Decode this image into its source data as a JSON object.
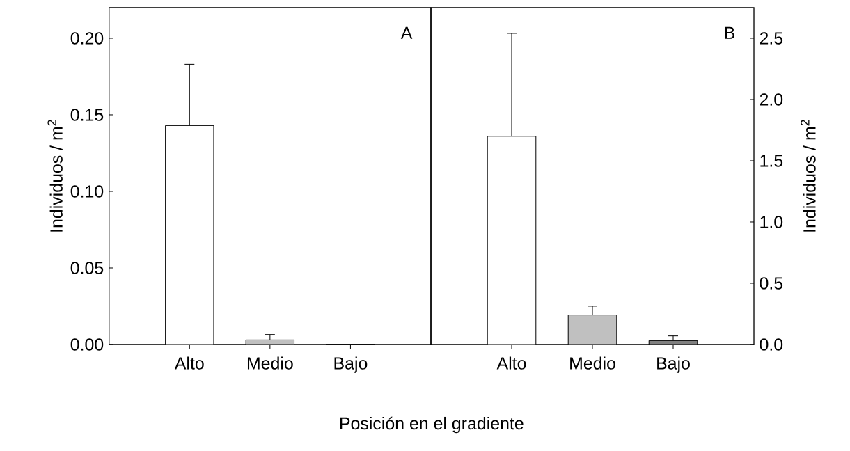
{
  "chart_data": [
    {
      "type": "bar",
      "categories": [
        "Alto",
        "Medio",
        "Bajo"
      ],
      "values": [
        0.143,
        0.003,
        0
      ],
      "errors": [
        0.04,
        0.0035,
        null
      ],
      "colors": [
        "#ffffff",
        "#c0c0c0",
        "#808080"
      ],
      "ylabel": "Individuos / m$^{2}$",
      "xlabel": "Posición en el gradiente",
      "annotations": [
        "A"
      ],
      "ylim": [
        0,
        0.22
      ],
      "yticks": [
        {
          "value": 0,
          "label": "0.00"
        },
        {
          "value": 0.05,
          "label": "0.05"
        },
        {
          "value": 0.1,
          "label": "0.10"
        },
        {
          "value": 0.15,
          "label": "0.15"
        },
        {
          "value": 0.2,
          "label": "0.20"
        }
      ],
      "grid": false
    },
    {
      "type": "bar",
      "categories": [
        "Alto",
        "Medio",
        "Bajo"
      ],
      "values": [
        1.7,
        0.241,
        0.032
      ],
      "errors": [
        0.84,
        0.072,
        0.038
      ],
      "colors": [
        "#ffffff",
        "#c0c0c0",
        "#808080"
      ],
      "ylabel": "Individuos / m$^{2}$",
      "annotations": [
        "B"
      ],
      "ylim": [
        0,
        2.75
      ],
      "yticks": [
        {
          "value": 0,
          "label": "0.0"
        },
        {
          "value": 0.5,
          "label": "0.5"
        },
        {
          "value": 1.0,
          "label": "1.0"
        },
        {
          "value": 1.5,
          "label": "1.5"
        },
        {
          "value": 2.0,
          "label": "2.0"
        },
        {
          "value": 2.5,
          "label": "2.5"
        }
      ],
      "grid": false
    }
  ]
}
